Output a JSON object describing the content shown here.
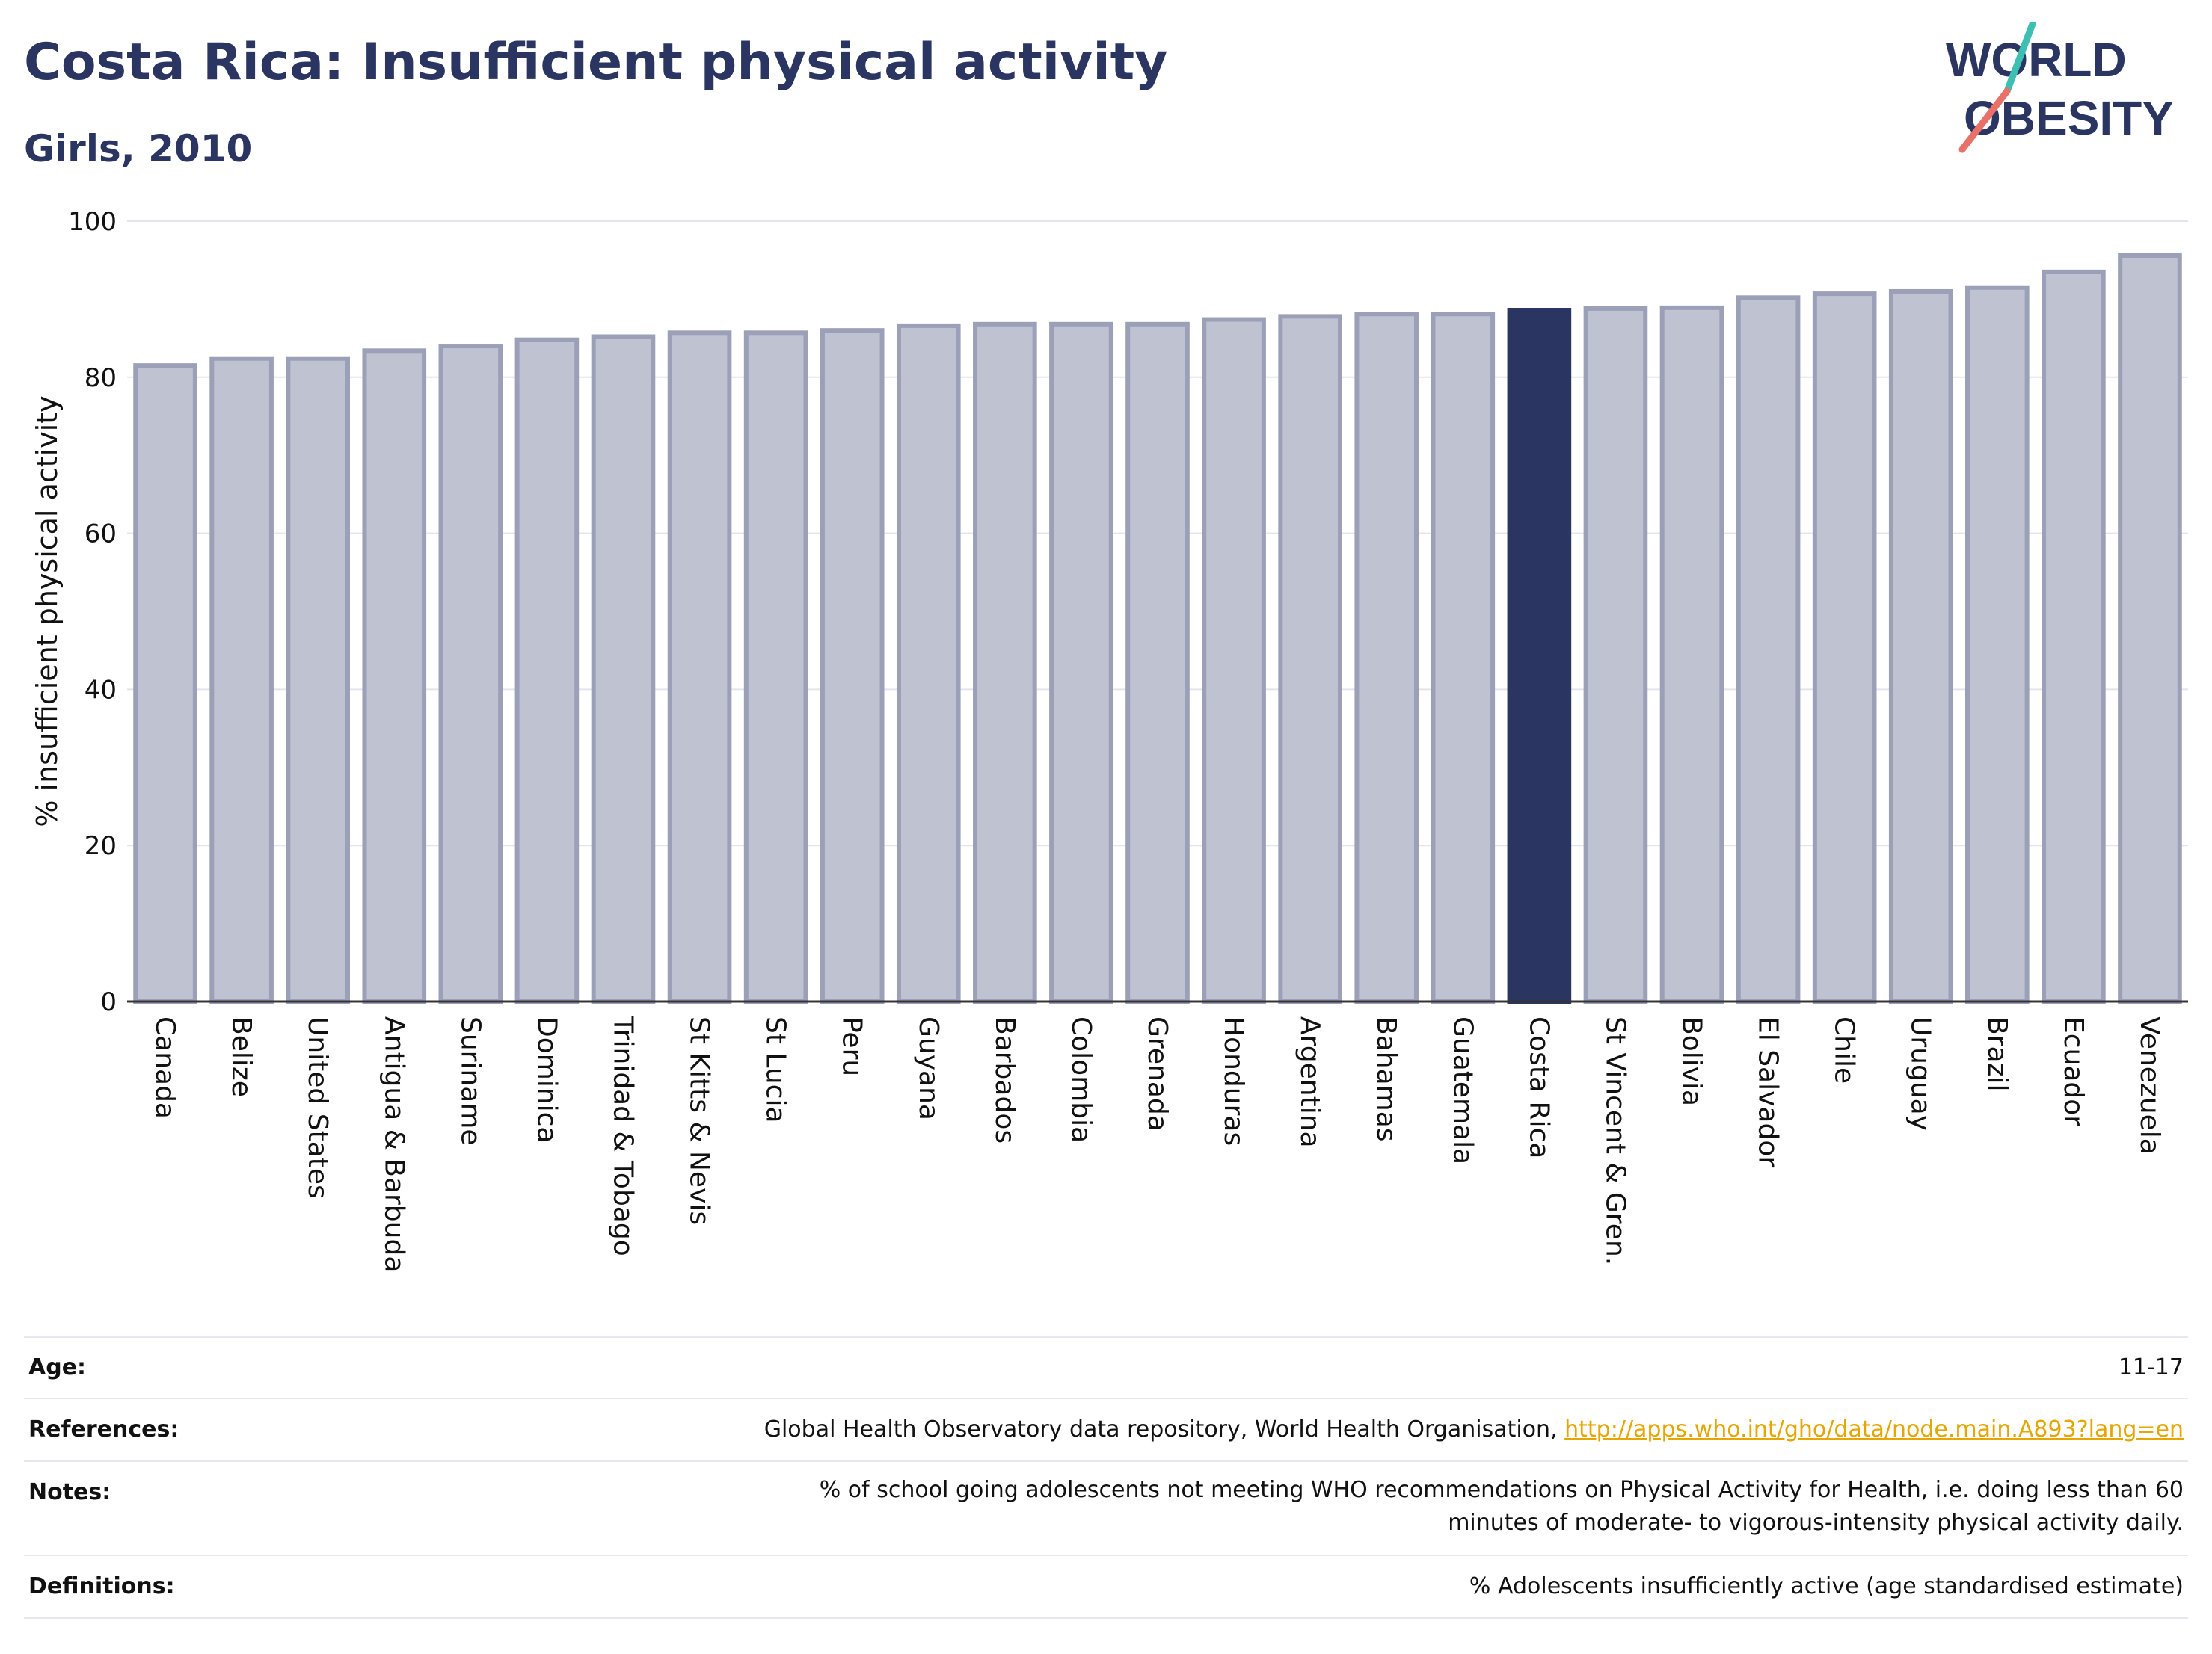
{
  "title": "Costa Rica: Insufficient physical activity",
  "subtitle": "Girls, 2010",
  "logo": {
    "line1": "WORLD",
    "line2": "OBESITY"
  },
  "colors": {
    "bar": "#bfc2d1",
    "bar_border": "#9ba0b8",
    "highlight": "#2a3561",
    "title": "#2a3561",
    "logo_teal": "#3dbfb4",
    "logo_coral": "#e8716a",
    "link": "#e5a600"
  },
  "chart_data": {
    "type": "bar",
    "title": "Costa Rica: Insufficient physical activity",
    "subtitle": "Girls, 2010",
    "xlabel": "",
    "ylabel": "% insufficient physical activity",
    "ylim": [
      0,
      100
    ],
    "yticks": [
      0,
      20,
      40,
      60,
      80,
      100
    ],
    "grid": true,
    "highlight": "Costa Rica",
    "categories": [
      "Canada",
      "Belize",
      "United States",
      "Antigua & Barbuda",
      "Suriname",
      "Dominica",
      "Trinidad & Tobago",
      "St Kitts & Nevis",
      "St Lucia",
      "Peru",
      "Guyana",
      "Barbados",
      "Colombia",
      "Grenada",
      "Honduras",
      "Argentina",
      "Bahamas",
      "Guatemala",
      "Costa Rica",
      "St Vincent & Gren.",
      "Bolivia",
      "El Salvador",
      "Chile",
      "Uruguay",
      "Brazil",
      "Ecuador",
      "Venezuela"
    ],
    "values": [
      81.5,
      82.4,
      82.4,
      83.4,
      84.0,
      84.8,
      85.2,
      85.7,
      85.7,
      86.0,
      86.6,
      86.8,
      86.8,
      86.8,
      87.4,
      87.8,
      88.1,
      88.1,
      88.6,
      88.8,
      88.9,
      90.2,
      90.7,
      91.0,
      91.5,
      93.5,
      95.6
    ]
  },
  "footer": [
    {
      "key": "Age:",
      "value": "11-17"
    },
    {
      "key": "References:",
      "value": "Global Health Observatory data repository, World Health Organisation, ",
      "link": "http://apps.who.int/gho/data/node.main.A893?lang=en"
    },
    {
      "key": "Notes:",
      "value": "% of school going adolescents not meeting WHO recommendations on Physical Activity for Health, i.e. doing less than 60 minutes of moderate- to vigorous-intensity physical activity daily."
    },
    {
      "key": "Definitions:",
      "value": "% Adolescents insufficiently active (age standardised estimate)"
    }
  ]
}
